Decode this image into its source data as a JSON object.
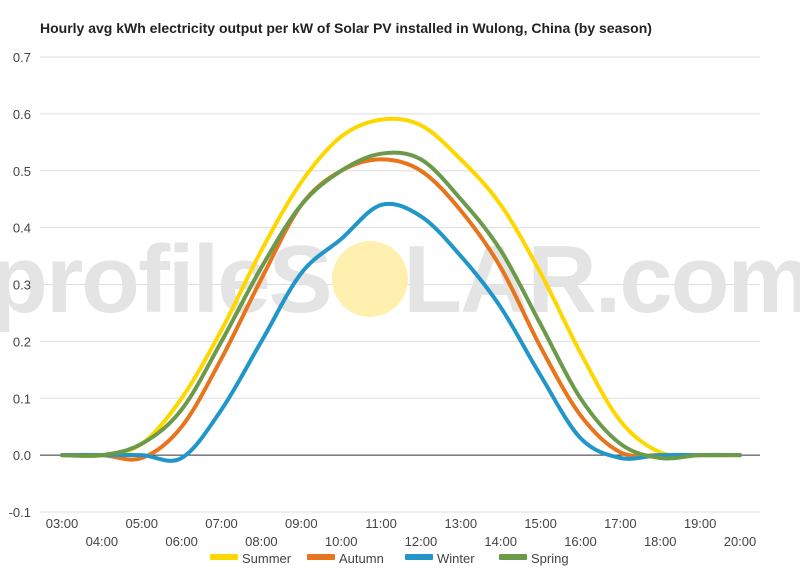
{
  "title": "Hourly avg kWh electricity output per kW of Solar PV installed in Wulong, China (by season)",
  "watermark": {
    "left": "profile",
    "o": "O",
    "right": "LAR.com",
    "s": "S"
  },
  "colors": {
    "summer": "#FFD700",
    "autumn": "#E8741E",
    "winter": "#2196C8",
    "spring": "#6B9B4A",
    "grid": "#DDDDDD",
    "zero_line": "#333333",
    "watermark": "#E4E4E4",
    "sun": "#FFF0B0"
  },
  "chart_data": {
    "type": "line",
    "title": "Hourly avg kWh electricity output per kW of Solar PV installed in Wulong, China (by season)",
    "xlabel": "",
    "ylabel": "",
    "ylim": [
      -0.1,
      0.7
    ],
    "yticks": [
      "-0.1",
      "0.0",
      "0.1",
      "0.2",
      "0.3",
      "0.4",
      "0.5",
      "0.6",
      "0.7"
    ],
    "x": [
      "03:00",
      "04:00",
      "05:00",
      "06:00",
      "07:00",
      "08:00",
      "09:00",
      "10:00",
      "11:00",
      "12:00",
      "13:00",
      "14:00",
      "15:00",
      "16:00",
      "17:00",
      "18:00",
      "19:00",
      "20:00"
    ],
    "grid": true,
    "legend_position": "bottom",
    "series": [
      {
        "name": "Summer",
        "color_key": "summer",
        "values": [
          0.0,
          0.0,
          0.02,
          0.1,
          0.22,
          0.36,
          0.48,
          0.56,
          0.59,
          0.58,
          0.52,
          0.44,
          0.32,
          0.18,
          0.06,
          0.005,
          0.0,
          0.0
        ]
      },
      {
        "name": "Autumn",
        "color_key": "autumn",
        "values": [
          0.0,
          0.0,
          -0.005,
          0.05,
          0.17,
          0.31,
          0.44,
          0.5,
          0.52,
          0.5,
          0.43,
          0.33,
          0.19,
          0.07,
          0.005,
          0.0,
          0.0,
          0.0
        ]
      },
      {
        "name": "Winter",
        "color_key": "winter",
        "values": [
          0.0,
          0.0,
          0.0,
          -0.005,
          0.08,
          0.2,
          0.32,
          0.38,
          0.44,
          0.42,
          0.35,
          0.26,
          0.14,
          0.03,
          -0.005,
          0.0,
          0.0,
          0.0
        ]
      },
      {
        "name": "Spring",
        "color_key": "spring",
        "values": [
          0.0,
          0.0,
          0.02,
          0.08,
          0.2,
          0.33,
          0.44,
          0.5,
          0.53,
          0.52,
          0.45,
          0.36,
          0.23,
          0.1,
          0.02,
          -0.005,
          0.0,
          0.0
        ]
      }
    ]
  }
}
